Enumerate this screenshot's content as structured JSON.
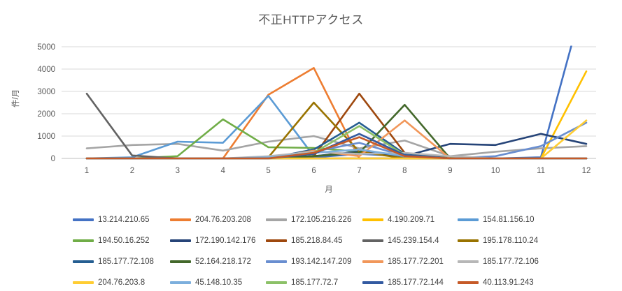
{
  "chart_data": {
    "type": "line",
    "title": "不正HTTPアクセス",
    "ylabel": "件/月",
    "xlabel": "月",
    "x": [
      1,
      2,
      3,
      4,
      5,
      6,
      7,
      8,
      9,
      10,
      11,
      12
    ],
    "ylim": [
      0,
      5000
    ],
    "yticks": [
      0,
      1000,
      2000,
      3000,
      4000,
      5000
    ],
    "grid": true,
    "legend_position": "bottom",
    "note": "series 13.214.210.65 exceeds axis max at month 12; line clipped at top of plot area",
    "series": [
      {
        "name": "13.214.210.65",
        "color": "#4472C4",
        "values": [
          0,
          0,
          0,
          0,
          0,
          50,
          200,
          100,
          0,
          0,
          50,
          7500
        ]
      },
      {
        "name": "204.76.203.208",
        "color": "#ED7D31",
        "values": [
          0,
          0,
          0,
          0,
          2850,
          4050,
          0,
          0,
          0,
          0,
          0,
          0
        ]
      },
      {
        "name": "172.105.216.226",
        "color": "#A5A5A5",
        "values": [
          450,
          600,
          650,
          350,
          750,
          1000,
          450,
          800,
          100,
          300,
          450,
          550
        ]
      },
      {
        "name": "4.190.209.71",
        "color": "#FFC000",
        "values": [
          0,
          0,
          0,
          0,
          0,
          0,
          0,
          0,
          0,
          0,
          0,
          3900
        ]
      },
      {
        "name": "154.81.156.10",
        "color": "#5B9BD5",
        "values": [
          0,
          50,
          750,
          700,
          2800,
          100,
          300,
          50,
          0,
          0,
          0,
          0
        ]
      },
      {
        "name": "194.50.16.252",
        "color": "#70AD47",
        "values": [
          0,
          0,
          100,
          1750,
          500,
          470,
          300,
          100,
          50,
          0,
          0,
          0
        ]
      },
      {
        "name": "172.190.142.176",
        "color": "#264478",
        "values": [
          0,
          0,
          0,
          0,
          0,
          100,
          300,
          100,
          650,
          600,
          1100,
          650
        ]
      },
      {
        "name": "185.218.84.45",
        "color": "#9E480E",
        "values": [
          0,
          0,
          0,
          0,
          0,
          100,
          2900,
          250,
          0,
          0,
          0,
          0
        ]
      },
      {
        "name": "145.239.154.4",
        "color": "#636363",
        "values": [
          2900,
          130,
          0,
          0,
          0,
          0,
          0,
          0,
          0,
          0,
          0,
          0
        ]
      },
      {
        "name": "195.178.110.24",
        "color": "#997300",
        "values": [
          0,
          0,
          0,
          0,
          50,
          2500,
          300,
          0,
          0,
          0,
          0,
          0
        ]
      },
      {
        "name": "185.177.72.108",
        "color": "#255E91",
        "values": [
          0,
          0,
          0,
          0,
          0,
          400,
          1600,
          200,
          0,
          0,
          0,
          0
        ]
      },
      {
        "name": "52.164.218.172",
        "color": "#43682B",
        "values": [
          0,
          0,
          0,
          0,
          0,
          100,
          250,
          2400,
          0,
          0,
          0,
          0
        ]
      },
      {
        "name": "193.142.147.209",
        "color": "#698ED0",
        "values": [
          0,
          0,
          0,
          0,
          0,
          300,
          700,
          100,
          0,
          100,
          550,
          1600
        ]
      },
      {
        "name": "185.177.72.201",
        "color": "#F1975A",
        "values": [
          0,
          0,
          0,
          0,
          0,
          350,
          100,
          1700,
          0,
          0,
          0,
          0
        ]
      },
      {
        "name": "185.177.72.106",
        "color": "#B7B7B7",
        "values": [
          0,
          0,
          0,
          0,
          100,
          300,
          200,
          250,
          100,
          0,
          0,
          0
        ]
      },
      {
        "name": "204.76.203.8",
        "color": "#FFCD33",
        "values": [
          0,
          0,
          0,
          0,
          0,
          0,
          0,
          0,
          0,
          0,
          0,
          1700
        ]
      },
      {
        "name": "45.148.10.35",
        "color": "#7CAFDD",
        "values": [
          0,
          0,
          0,
          0,
          50,
          250,
          400,
          100,
          0,
          0,
          0,
          0
        ]
      },
      {
        "name": "185.177.72.7",
        "color": "#8CC168",
        "values": [
          0,
          0,
          0,
          0,
          0,
          250,
          1450,
          150,
          0,
          0,
          0,
          0
        ]
      },
      {
        "name": "185.177.72.144",
        "color": "#335AA1",
        "values": [
          0,
          0,
          0,
          0,
          0,
          200,
          1100,
          150,
          0,
          0,
          0,
          0
        ]
      },
      {
        "name": "40.113.91.243",
        "color": "#C65A28",
        "values": [
          0,
          0,
          0,
          0,
          0,
          250,
          950,
          100,
          0,
          0,
          0,
          0
        ]
      }
    ],
    "style": {
      "gridline_color": "#D9D9D9",
      "axis_line_color": "#BFBFBF",
      "tick_label_color": "#595959",
      "legend_label_color": "#404040"
    }
  }
}
